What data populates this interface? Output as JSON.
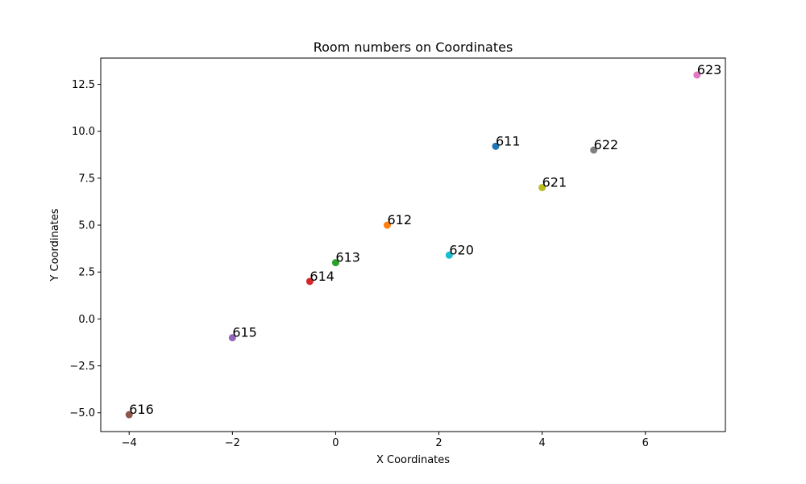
{
  "chart_data": {
    "type": "scatter",
    "title": "Room numbers on Coordinates",
    "xlabel": "X Coordinates",
    "ylabel": "Y Coordinates",
    "xlim": [
      -4.55,
      7.55
    ],
    "ylim": [
      -6.0,
      13.9
    ],
    "grid": false,
    "x_ticks": [
      -4,
      -2,
      0,
      2,
      4,
      6
    ],
    "x_tick_labels": [
      "−4",
      "−2",
      "0",
      "2",
      "4",
      "6"
    ],
    "y_ticks": [
      -5.0,
      -2.5,
      0.0,
      2.5,
      5.0,
      7.5,
      10.0,
      12.5
    ],
    "y_tick_labels": [
      "−5.0",
      "−2.5",
      "0.0",
      "2.5",
      "5.0",
      "7.5",
      "10.0",
      "12.5"
    ],
    "points": [
      {
        "label": "611",
        "x": 3.1,
        "y": 9.2,
        "color": "#1f77b4"
      },
      {
        "label": "612",
        "x": 1.0,
        "y": 5.0,
        "color": "#ff7f0e"
      },
      {
        "label": "613",
        "x": 0.0,
        "y": 3.0,
        "color": "#2ca02c"
      },
      {
        "label": "614",
        "x": -0.5,
        "y": 2.0,
        "color": "#d62728"
      },
      {
        "label": "615",
        "x": -2.0,
        "y": -1.0,
        "color": "#9467bd"
      },
      {
        "label": "616",
        "x": -4.0,
        "y": -5.1,
        "color": "#8c564b"
      },
      {
        "label": "623",
        "x": 7.0,
        "y": 13.0,
        "color": "#e377c2"
      },
      {
        "label": "622",
        "x": 5.0,
        "y": 9.0,
        "color": "#7f7f7f"
      },
      {
        "label": "621",
        "x": 4.0,
        "y": 7.0,
        "color": "#bcbd22"
      },
      {
        "label": "620",
        "x": 2.2,
        "y": 3.4,
        "color": "#17becf"
      }
    ]
  }
}
